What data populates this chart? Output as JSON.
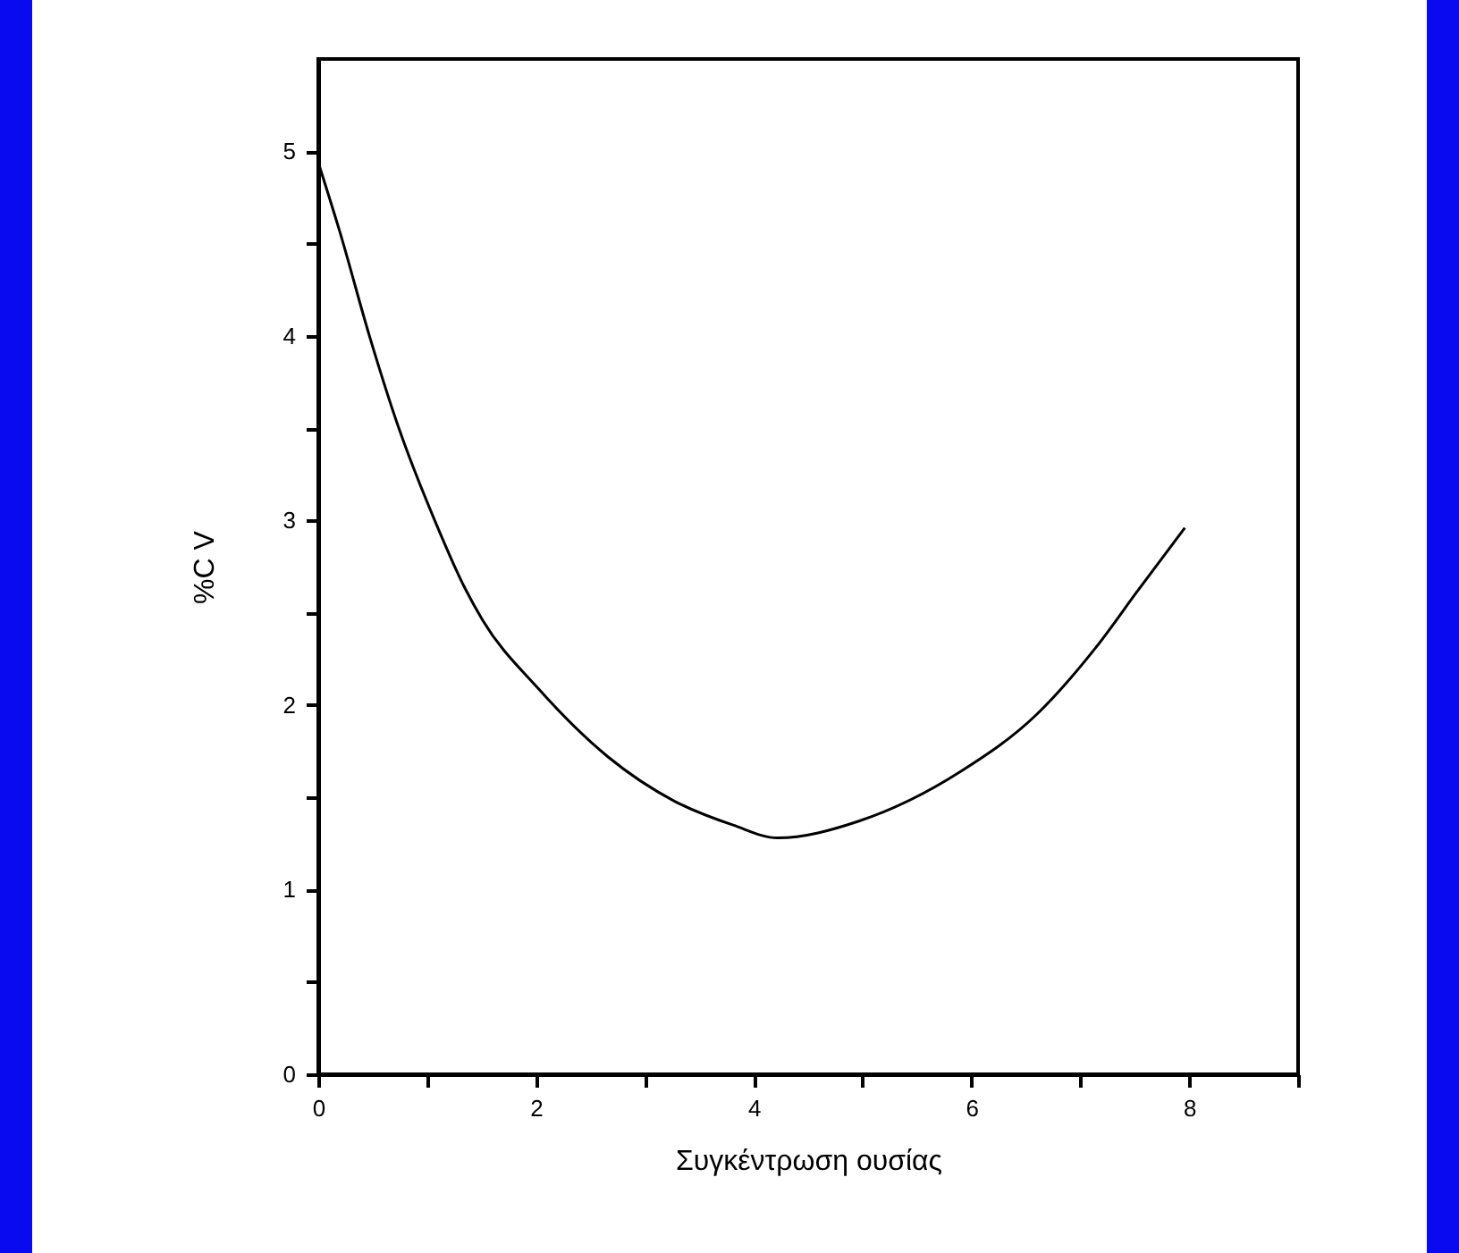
{
  "chart_data": {
    "type": "line",
    "xlabel": "Συγκέντρωση ουσίας",
    "ylabel": "%C V",
    "x": [
      0,
      0.2,
      0.47,
      0.74,
      1.07,
      1.35,
      1.51,
      2.02,
      2.66,
      3.27,
      3.81,
      4.22,
      4.96,
      5.9,
      6.6,
      7.14,
      7.54,
      7.96
    ],
    "series": [
      {
        "color": "#000000",
        "values": [
          4.94,
          4.56,
          4.0,
          3.5,
          3.0,
          2.63,
          2.46,
          2.09,
          1.72,
          1.48,
          1.35,
          1.28,
          1.37,
          1.64,
          1.95,
          2.31,
          2.63,
          2.96
        ]
      }
    ],
    "xlim": [
      0,
      9
    ],
    "ylim": [
      0,
      5.5
    ],
    "xticks": [
      0,
      {
        "value": 1,
        "label": null
      },
      2,
      {
        "value": 3,
        "label": null
      },
      4,
      {
        "value": 5,
        "label": null
      },
      6,
      {
        "value": 7,
        "label": null
      },
      8,
      {
        "value": 9,
        "label": null
      }
    ],
    "yticks": [
      0,
      {
        "value": 0.5,
        "label": null
      },
      1,
      {
        "value": 1.5,
        "label": null
      },
      2,
      {
        "value": 2.5,
        "label": null
      },
      3,
      {
        "value": 3.5,
        "label": null
      },
      4,
      {
        "value": 4.5,
        "label": null
      },
      5
    ],
    "grid": false,
    "marker": "none",
    "line_style": "solid"
  }
}
